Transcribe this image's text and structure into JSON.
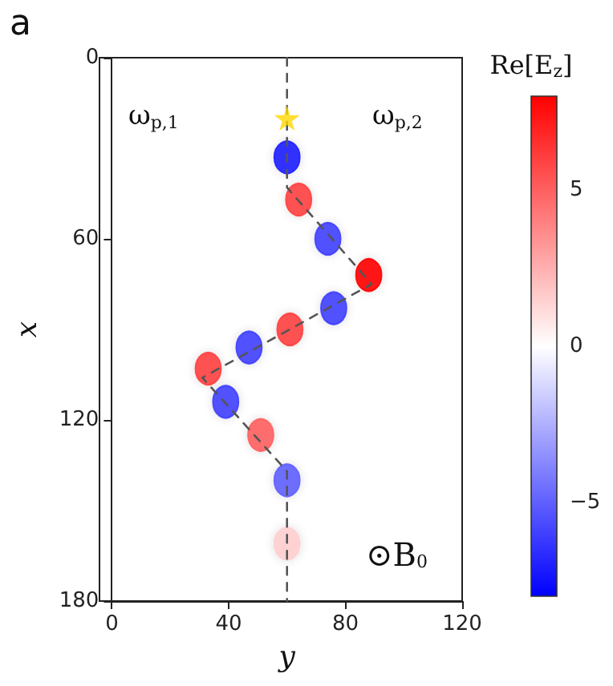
{
  "chart_data": {
    "type": "scatter",
    "xlabel": "y",
    "ylabel": "x",
    "clabel": "Re[E$_{z}$]",
    "annotations": [
      "a",
      "ω$_{p,1}$",
      "ω$_{p,2}$",
      "⊙B$_{0}$"
    ],
    "xlim": [
      0,
      120
    ],
    "xticks": [
      0,
      40,
      80,
      120
    ],
    "ylim": [
      180,
      0
    ],
    "yticks": [
      0,
      60,
      120,
      180
    ],
    "clim": [
      -8,
      8
    ],
    "cticks": [
      -5,
      0,
      5
    ],
    "grid": false,
    "series": [
      {
        "type": "line",
        "x": [
          60,
          60,
          89,
          31,
          60,
          60
        ],
        "values": [
          0,
          43,
          75,
          106,
          137,
          180
        ],
        "color": "#555555",
        "line_style": "dashed",
        "marker": "none"
      },
      {
        "x": [
          60,
          64,
          74,
          88,
          76,
          61,
          47,
          33,
          39,
          51,
          60,
          60
        ],
        "values": [
          33,
          47,
          60,
          72,
          83,
          90,
          96,
          103,
          114,
          125,
          140,
          161
        ],
        "cvalues": [
          -7,
          6,
          -6,
          8,
          -6,
          6,
          -6,
          6,
          -6,
          5,
          -5,
          1.5
        ],
        "colors": [
          "#2020ff",
          "#ff4040",
          "#4040ff",
          "#ff0000",
          "#4040ff",
          "#ff4040",
          "#4040ff",
          "#ff4040",
          "#4040ff",
          "#ff6060",
          "#6060ff",
          "#ffcfcf"
        ],
        "marker": "circle"
      },
      {
        "x": [
          60
        ],
        "values": [
          20
        ],
        "color": "#ffd700",
        "marker": "star"
      }
    ]
  }
}
